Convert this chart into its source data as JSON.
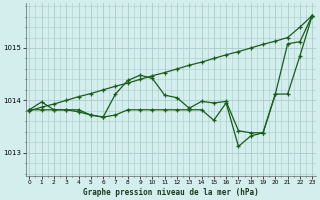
{
  "title": "Graphe pression niveau de la mer (hPa)",
  "background_color": "#d4eeee",
  "grid_color": "#aacccc",
  "line_color": "#1a5c1a",
  "xlim": [
    -0.3,
    23.3
  ],
  "ylim": [
    1012.55,
    1015.85
  ],
  "yticks": [
    1013,
    1014,
    1015
  ],
  "xticks": [
    0,
    1,
    2,
    3,
    4,
    5,
    6,
    7,
    8,
    9,
    10,
    11,
    12,
    13,
    14,
    15,
    16,
    17,
    18,
    19,
    20,
    21,
    22,
    23
  ],
  "s1": [
    1013.8,
    1013.87,
    1013.93,
    1014.0,
    1014.07,
    1014.13,
    1014.2,
    1014.27,
    1014.33,
    1014.4,
    1014.47,
    1014.53,
    1014.6,
    1014.67,
    1014.73,
    1014.8,
    1014.87,
    1014.93,
    1015.0,
    1015.07,
    1015.13,
    1015.2,
    1015.4,
    1015.62
  ],
  "s2": [
    1013.82,
    1013.97,
    1013.82,
    1013.82,
    1013.82,
    1013.72,
    1013.68,
    1014.12,
    1014.38,
    1014.48,
    1014.42,
    1014.1,
    1014.05,
    1013.85,
    1013.98,
    1013.95,
    1013.98,
    1013.42,
    1013.38,
    1013.38,
    1014.12,
    1015.08,
    1015.12,
    1015.62
  ],
  "s3": [
    1013.82,
    1013.82,
    1013.82,
    1013.82,
    1013.78,
    1013.72,
    1013.68,
    1013.72,
    1013.82,
    1013.82,
    1013.82,
    1013.82,
    1013.82,
    1013.82,
    1013.82,
    1013.62,
    1013.95,
    1013.12,
    1013.32,
    1013.38,
    1014.12,
    1014.12,
    1014.85,
    1015.62
  ]
}
